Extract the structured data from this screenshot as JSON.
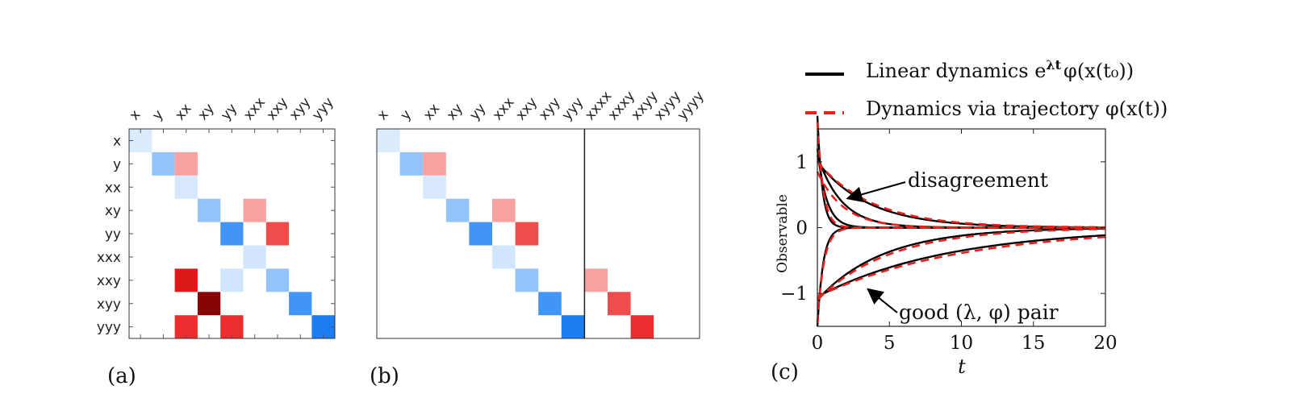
{
  "chart_data": [
    {
      "type": "heatmap",
      "panel_label": "(a)",
      "column_labels": [
        "x",
        "y",
        "xx",
        "xy",
        "yy",
        "xxx",
        "xxy",
        "xyy",
        "yyy"
      ],
      "row_labels": [
        "x",
        "y",
        "xx",
        "xy",
        "yy",
        "xxx",
        "xxy",
        "xyy",
        "yyy"
      ],
      "cells": [
        {
          "row": 0,
          "col": 0,
          "value": -0.1
        },
        {
          "row": 1,
          "col": 1,
          "value": -0.45
        },
        {
          "row": 1,
          "col": 2,
          "value": 0.4
        },
        {
          "row": 2,
          "col": 2,
          "value": -0.12
        },
        {
          "row": 3,
          "col": 3,
          "value": -0.45
        },
        {
          "row": 3,
          "col": 5,
          "value": 0.4
        },
        {
          "row": 4,
          "col": 4,
          "value": -0.85
        },
        {
          "row": 4,
          "col": 6,
          "value": 0.8
        },
        {
          "row": 5,
          "col": 5,
          "value": -0.15
        },
        {
          "row": 6,
          "col": 2,
          "value": 1.1
        },
        {
          "row": 6,
          "col": 4,
          "value": -0.15
        },
        {
          "row": 6,
          "col": 6,
          "value": -0.45
        },
        {
          "row": 7,
          "col": 3,
          "value": 1.6
        },
        {
          "row": 7,
          "col": 7,
          "value": -0.85
        },
        {
          "row": 8,
          "col": 2,
          "value": 0.95
        },
        {
          "row": 8,
          "col": 4,
          "value": 0.95
        },
        {
          "row": 8,
          "col": 8,
          "value": -1.1
        }
      ]
    },
    {
      "type": "heatmap",
      "panel_label": "(b)",
      "column_labels": [
        "x",
        "y",
        "xx",
        "xy",
        "yy",
        "xxx",
        "xxy",
        "xyy",
        "yyy",
        "xxxx",
        "xxxy",
        "xxyy",
        "xyyy",
        "yyyy"
      ],
      "row_count": 9,
      "divider_after_column": 9,
      "cells": [
        {
          "row": 0,
          "col": 0,
          "value": -0.1
        },
        {
          "row": 1,
          "col": 1,
          "value": -0.45
        },
        {
          "row": 1,
          "col": 2,
          "value": 0.4
        },
        {
          "row": 2,
          "col": 2,
          "value": -0.12
        },
        {
          "row": 3,
          "col": 3,
          "value": -0.45
        },
        {
          "row": 3,
          "col": 5,
          "value": 0.4
        },
        {
          "row": 4,
          "col": 4,
          "value": -0.85
        },
        {
          "row": 4,
          "col": 6,
          "value": 0.8
        },
        {
          "row": 5,
          "col": 5,
          "value": -0.15
        },
        {
          "row": 6,
          "col": 6,
          "value": -0.45
        },
        {
          "row": 6,
          "col": 9,
          "value": 0.4
        },
        {
          "row": 7,
          "col": 7,
          "value": -0.85
        },
        {
          "row": 7,
          "col": 10,
          "value": 0.8
        },
        {
          "row": 8,
          "col": 8,
          "value": -1.1
        },
        {
          "row": 8,
          "col": 11,
          "value": 0.95
        }
      ]
    },
    {
      "type": "line",
      "panel_label": "(c)",
      "xlabel": "t",
      "ylabel": "Observable",
      "xlim": [
        0,
        20
      ],
      "ylim": [
        -1.5,
        1.5
      ],
      "xticks": [
        "0",
        "5",
        "10",
        "15",
        "20"
      ],
      "yticks": [
        "1",
        "0",
        "−1"
      ],
      "legend": [
        {
          "label_main": "Linear dynamics e",
          "label_sup": "λt",
          "label_tail": "φ(x(t₀))",
          "style": "solid",
          "color": "#000000"
        },
        {
          "label_main": "Dynamics via trajectory φ(x(t))",
          "style": "dashed",
          "color": "#e8201c"
        }
      ],
      "annotations": [
        {
          "text": "disagreement",
          "x": 2.2,
          "y": 0.45
        },
        {
          "text": "good (λ, φ) pair",
          "x": 3.6,
          "y": -0.95
        }
      ],
      "series": [
        {
          "name": "linear-1",
          "style": "solid",
          "a": 1.7,
          "rate": 3.0
        },
        {
          "name": "linear-2",
          "style": "solid",
          "a": 1.2,
          "rate": 1.6
        },
        {
          "name": "linear-3",
          "style": "solid",
          "a": 1.1,
          "rate": 0.6
        },
        {
          "name": "linear-4",
          "style": "solid",
          "a": 1.0,
          "rate": 0.28
        },
        {
          "name": "linear-5",
          "style": "solid",
          "a": -1.5,
          "rate": 2.5
        },
        {
          "name": "linear-6",
          "style": "solid",
          "a": -1.1,
          "rate": 0.22
        },
        {
          "name": "linear-7",
          "style": "solid",
          "a": -1.05,
          "rate": 0.11
        },
        {
          "name": "traj-1",
          "style": "dashed",
          "a": 1.6,
          "rate": 2.5
        },
        {
          "name": "traj-2",
          "style": "dashed",
          "a": 0.85,
          "rate": 0.55
        },
        {
          "name": "traj-3",
          "style": "dashed",
          "a": 1.0,
          "rate": 0.26
        },
        {
          "name": "traj-4",
          "style": "dashed",
          "a": -1.45,
          "rate": 2.2
        },
        {
          "name": "traj-5",
          "style": "dashed",
          "a": -1.1,
          "rate": 0.2
        },
        {
          "name": "traj-6",
          "style": "dashed",
          "a": -1.05,
          "rate": 0.1
        }
      ]
    }
  ],
  "colors": {
    "positive": "#e8201c",
    "negative": "#1a7ff0",
    "line": "#000000",
    "dash": "#e8201c"
  }
}
